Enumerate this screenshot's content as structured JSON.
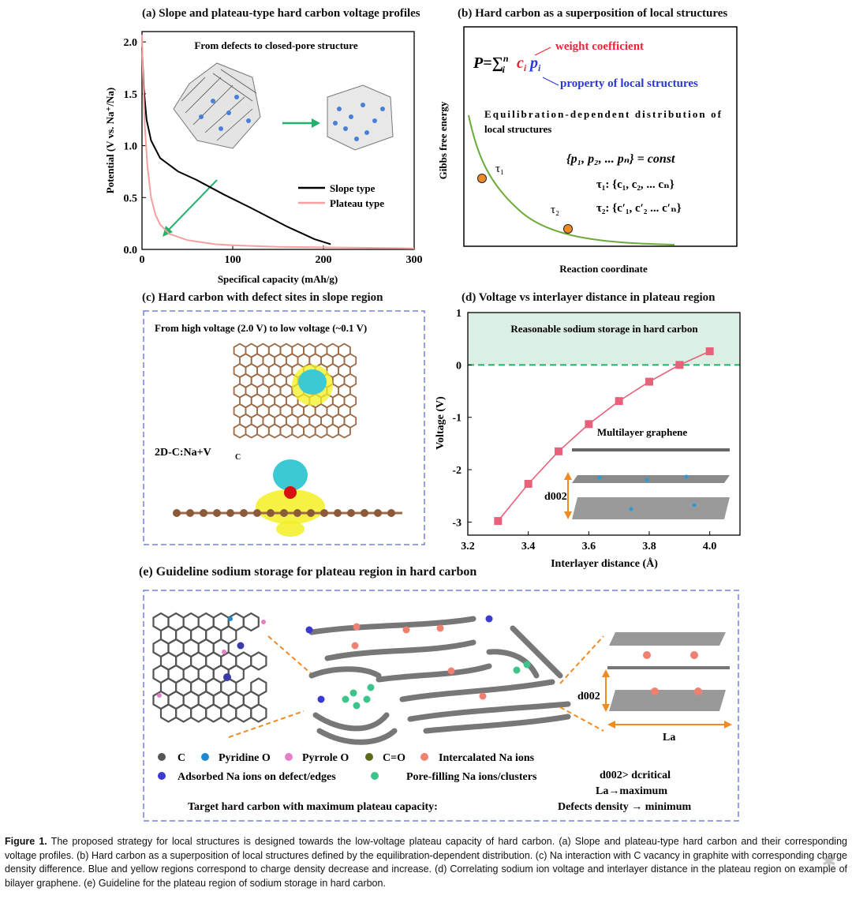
{
  "panels": {
    "a": {
      "title": "(a) Slope and plateau-type hard carbon voltage profiles",
      "inset_title": "From defects to closed-pore structure",
      "ylabel": "Potential (V vs. Na⁺/Na)",
      "xlabel": "Specifical  capacity (mAh/g)",
      "legend": [
        "Slope type",
        "Plateau type"
      ],
      "x_ticks": [
        "0",
        "100",
        "200",
        "300"
      ],
      "y_ticks": [
        "0.0",
        "0.5",
        "1.0",
        "1.5",
        "2.0"
      ]
    },
    "b": {
      "title": "(b) Hard carbon as a superposition of local structures",
      "weight_label": "weight coefficient",
      "property_label": "property of local structures",
      "equilibration_text_1": "Equilibration-dependent distribution of",
      "equilibration_text_2": "local structures",
      "ylabel": "Gibbs free energy",
      "xlabel": "Reaction coordinate",
      "tau1": "τ₁",
      "tau2": "τ₂",
      "set_const": "{p₁, p₂, ... pₙ} = const",
      "tau1_set": "τ₁: {c₁, c₂, ... cₙ}",
      "tau2_set": "τ₂: {c′₁, c′₂ ... c′ₙ}"
    },
    "c": {
      "title": "(c) Hard carbon with defect sites in slope region",
      "subtitle": "From high voltage (2.0 V)  to low voltage (~0.1 V)",
      "label": "2D-C:Na+V"
    },
    "d": {
      "title": "(d) Voltage vs interlayer distance in  plateau region",
      "region_label": "Reasonable sodium storage in hard carbon",
      "ylabel": "Voltage (V)",
      "xlabel": "Interlayer distance (Å)",
      "inset_label": "Multilayer graphene",
      "d002": "d002",
      "x_ticks": [
        "3.2",
        "3.4",
        "3.6",
        "3.8",
        "4.0"
      ],
      "y_ticks": [
        "1",
        "0",
        "-1",
        "-2",
        "-3"
      ]
    },
    "e": {
      "title": "(e) Guideline sodium storage for plateau region in hard carbon",
      "legend": [
        "C",
        "Pyridine O",
        "Pyrrole O",
        "C=O",
        "Intercalated Na ions",
        "Adsorbed Na ions on defect/edges",
        "Pore-filling Na ions/clusters"
      ],
      "target_label": "Target hard carbon with maximum plateau capacity:",
      "cond1": "d002> dcritical",
      "cond2": "La→maximum",
      "cond3": "Defects density → minimum",
      "d002": "d002",
      "La": "La"
    }
  },
  "chart_data": [
    {
      "type": "line",
      "panel": "a",
      "xlim": [
        0,
        300
      ],
      "ylim": [
        0,
        2.1
      ],
      "xlabel": "Specifical  capacity (mAh/g)",
      "ylabel": "Potential (V vs. Na+/Na)",
      "legend_position": "right",
      "series": [
        {
          "name": "Slope type",
          "color": "#000000",
          "x": [
            0,
            2,
            5,
            10,
            20,
            40,
            60,
            90,
            120,
            160,
            190,
            208
          ],
          "y": [
            1.95,
            1.55,
            1.25,
            1.05,
            0.88,
            0.75,
            0.67,
            0.53,
            0.4,
            0.22,
            0.1,
            0.05
          ]
        },
        {
          "name": "Plateau type",
          "color": "#f4a0a0",
          "x": [
            0,
            1,
            3,
            6,
            10,
            15,
            20,
            30,
            50,
            80,
            100,
            150,
            200,
            250,
            300
          ],
          "y": [
            2.07,
            1.7,
            1.2,
            0.8,
            0.5,
            0.33,
            0.24,
            0.15,
            0.09,
            0.05,
            0.04,
            0.025,
            0.02,
            0.015,
            0.01
          ]
        }
      ]
    },
    {
      "type": "line",
      "panel": "d",
      "xlim": [
        3.2,
        4.1
      ],
      "ylim": [
        -3.25,
        1
      ],
      "xlabel": "Interlayer distance (Å)",
      "ylabel": "Voltage (V)",
      "series": [
        {
          "name": "",
          "color": "#e8607a",
          "x": [
            3.3,
            3.4,
            3.5,
            3.6,
            3.7,
            3.8,
            3.9,
            4.0
          ],
          "y": [
            -2.98,
            -2.27,
            -1.65,
            -1.13,
            -0.69,
            -0.32,
            0.0,
            0.26
          ]
        }
      ]
    }
  ],
  "caption": {
    "label": "Figure 1.",
    "text": " The proposed strategy for local structures is designed towards the low-voltage plateau capacity of hard carbon. (a) Slope and plateau-type hard carbon and their corresponding voltage profiles. (b) Hard carbon as a superposition of local structures defined by the equilibration-dependent distribution. (c) Na interaction with C vacancy in graphite with corresponding charge density difference. Blue and yellow regions correspond to charge density decrease and increase. (d) Correlating sodium ion voltage and interlayer distance in the plateau region on example of bilayer graphene. (e) Guideline for the plateau region of sodium storage in hard carbon."
  },
  "colors": {
    "accent_red": "#e8253a",
    "accent_blue": "#2a36d8",
    "dash_border": "#7080e0",
    "green_arrow": "#22b36a",
    "orange": "#f08a24"
  }
}
